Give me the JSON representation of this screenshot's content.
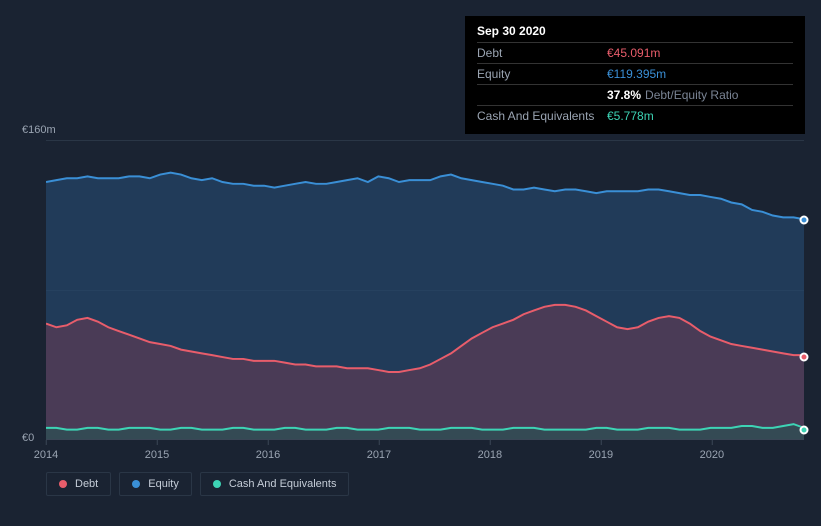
{
  "background_color": "#1a2332",
  "tooltip": {
    "date": "Sep 30 2020",
    "rows": [
      {
        "label": "Debt",
        "value": "€45.091m",
        "cls": "debt"
      },
      {
        "label": "Equity",
        "value": "€119.395m",
        "cls": "equity"
      },
      {
        "label": "",
        "pct": "37.8%",
        "ratio_label": "Debt/Equity Ratio",
        "cls": "ratio"
      },
      {
        "label": "Cash And Equivalents",
        "value": "€5.778m",
        "cls": "cash"
      }
    ]
  },
  "chart": {
    "type": "area",
    "y_max_label": "€160m",
    "y_zero_label": "€0",
    "ylim": [
      0,
      160
    ],
    "label_fontsize": 11,
    "grid_color": "#242f3f",
    "axis_color": "#3a4656",
    "x_ticks": [
      "2014",
      "2015",
      "2016",
      "2017",
      "2018",
      "2019",
      "2020"
    ],
    "series": {
      "equity": {
        "color": "#3a8fd6",
        "fill": "#28517a",
        "fill_opacity": 0.55,
        "line_width": 2,
        "values": [
          138,
          139,
          140,
          140,
          141,
          140,
          140,
          140,
          141,
          141,
          140,
          142,
          143,
          142,
          140,
          139,
          140,
          138,
          137,
          137,
          136,
          136,
          135,
          136,
          137,
          138,
          137,
          137,
          138,
          139,
          140,
          138,
          141,
          140,
          138,
          139,
          139,
          139,
          141,
          142,
          140,
          139,
          138,
          137,
          136,
          134,
          134,
          135,
          134,
          133,
          134,
          134,
          133,
          132,
          133,
          133,
          133,
          133,
          134,
          134,
          133,
          132,
          131,
          131,
          130,
          129,
          127,
          126,
          123,
          122,
          120,
          119,
          119,
          118
        ]
      },
      "debt": {
        "color": "#e85d6b",
        "fill": "#7d3c52",
        "fill_opacity": 0.45,
        "line_width": 2,
        "values": [
          62,
          60,
          61,
          64,
          65,
          63,
          60,
          58,
          56,
          54,
          52,
          51,
          50,
          48,
          47,
          46,
          45,
          44,
          43,
          43,
          42,
          42,
          42,
          41,
          40,
          40,
          39,
          39,
          39,
          38,
          38,
          38,
          37,
          36,
          36,
          37,
          38,
          40,
          43,
          46,
          50,
          54,
          57,
          60,
          62,
          64,
          67,
          69,
          71,
          72,
          72,
          71,
          69,
          66,
          63,
          60,
          59,
          60,
          63,
          65,
          66,
          65,
          62,
          58,
          55,
          53,
          51,
          50,
          49,
          48,
          47,
          46,
          45,
          45
        ]
      },
      "cash": {
        "color": "#3dd4b5",
        "fill": "#1e5a52",
        "fill_opacity": 0.5,
        "line_width": 2,
        "values": [
          6,
          6,
          5,
          5,
          6,
          6,
          5,
          5,
          6,
          6,
          6,
          5,
          5,
          6,
          6,
          5,
          5,
          5,
          6,
          6,
          5,
          5,
          5,
          6,
          6,
          5,
          5,
          5,
          6,
          6,
          5,
          5,
          5,
          6,
          6,
          6,
          5,
          5,
          5,
          6,
          6,
          6,
          5,
          5,
          5,
          6,
          6,
          6,
          5,
          5,
          5,
          5,
          5,
          6,
          6,
          5,
          5,
          5,
          6,
          6,
          6,
          5,
          5,
          5,
          6,
          6,
          6,
          7,
          7,
          6,
          6,
          7,
          8,
          6
        ]
      }
    },
    "legend": [
      {
        "label": "Debt",
        "color": "#e85d6b"
      },
      {
        "label": "Equity",
        "color": "#3a8fd6"
      },
      {
        "label": "Cash And Equivalents",
        "color": "#3dd4b5"
      }
    ],
    "markers": [
      {
        "series": "equity",
        "color": "#3a8fd6"
      },
      {
        "series": "debt",
        "color": "#e85d6b"
      },
      {
        "series": "cash",
        "color": "#3dd4b5"
      }
    ]
  }
}
